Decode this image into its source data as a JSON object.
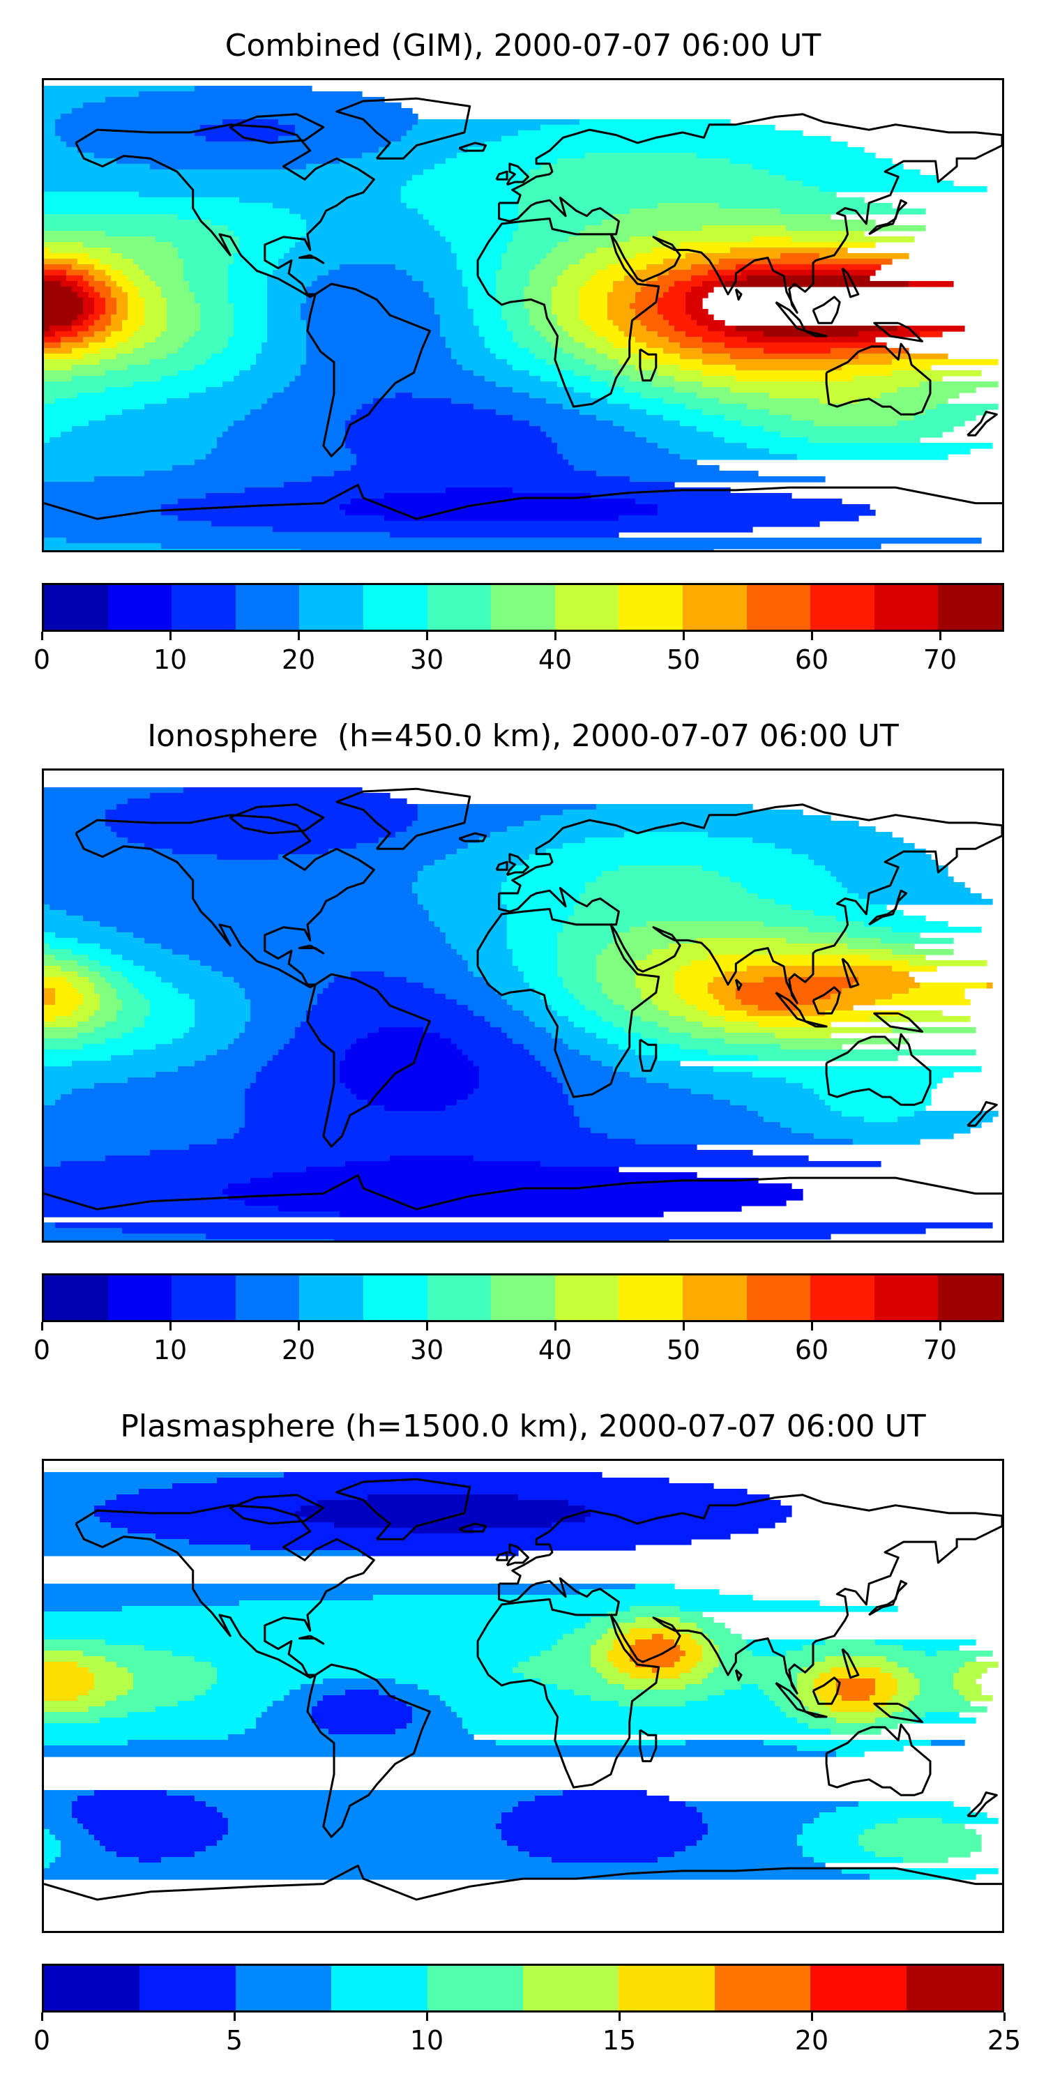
{
  "panels": [
    {
      "title": "Combined (GIM), 2000-07-07 06:00 UT",
      "colorbar": {
        "min": 0,
        "max": 75,
        "step": 5,
        "ticks": [
          "0",
          "10",
          "20",
          "30",
          "40",
          "50",
          "60",
          "70"
        ],
        "tick_values": [
          0,
          10,
          20,
          30,
          40,
          50,
          60,
          70
        ]
      },
      "field": {
        "background": 22,
        "features": [
          {
            "lon": 112,
            "lat": 3,
            "rlon": 80,
            "rlat": 28,
            "amp": 42
          },
          {
            "lon": 125,
            "lat": 5,
            "rlon": 40,
            "rlat": 14,
            "amp": 14
          },
          {
            "lon": 95,
            "lat": 6,
            "rlon": 25,
            "rlat": 9,
            "amp": 10
          },
          {
            "lon": 40,
            "lat": 5,
            "rlon": 70,
            "rlat": 35,
            "amp": 14
          },
          {
            "lon": -178,
            "lat": 5,
            "rlon": 25,
            "rlat": 16,
            "amp": 28
          },
          {
            "lon": -140,
            "lat": -3,
            "rlon": 70,
            "rlat": 25,
            "amp": 14
          },
          {
            "lon": -130,
            "lat": 30,
            "rlon": 50,
            "rlat": 15,
            "amp": 8
          },
          {
            "lon": -60,
            "lat": 0,
            "rlon": 55,
            "rlat": 25,
            "amp": -12
          },
          {
            "lon": -20,
            "lat": -45,
            "rlon": 80,
            "rlat": 25,
            "amp": -10
          },
          {
            "lon": 0,
            "lat": -75,
            "rlon": 180,
            "rlat": 12,
            "amp": -12
          },
          {
            "lon": -100,
            "lat": 70,
            "rlon": 70,
            "rlat": 15,
            "amp": -8
          },
          {
            "lon": 130,
            "lat": -40,
            "rlon": 45,
            "rlat": 15,
            "amp": 10
          },
          {
            "lon": 80,
            "lat": -25,
            "rlon": 40,
            "rlat": 20,
            "amp": 4
          },
          {
            "lon": 40,
            "lat": 55,
            "rlon": 90,
            "rlat": 20,
            "amp": 8
          }
        ]
      }
    },
    {
      "title": "Ionosphere  (h=450.0 km), 2000-07-07 06:00 UT",
      "colorbar": {
        "min": 0,
        "max": 75,
        "step": 5,
        "ticks": [
          "0",
          "10",
          "20",
          "30",
          "40",
          "50",
          "60",
          "70"
        ],
        "tick_values": [
          0,
          10,
          20,
          30,
          40,
          50,
          60,
          70
        ]
      },
      "field": {
        "background": 17,
        "features": [
          {
            "lon": 110,
            "lat": 5,
            "rlon": 70,
            "rlat": 25,
            "amp": 32
          },
          {
            "lon": 93,
            "lat": 3,
            "rlon": 18,
            "rlat": 7,
            "amp": 7
          },
          {
            "lon": 135,
            "lat": 12,
            "rlon": 25,
            "rlat": 8,
            "amp": 7
          },
          {
            "lon": 40,
            "lat": 20,
            "rlon": 65,
            "rlat": 35,
            "amp": 13
          },
          {
            "lon": -178,
            "lat": 5,
            "rlon": 25,
            "rlat": 16,
            "amp": 16
          },
          {
            "lon": -150,
            "lat": -5,
            "rlon": 60,
            "rlat": 20,
            "amp": 10
          },
          {
            "lon": -40,
            "lat": -20,
            "rlon": 60,
            "rlat": 35,
            "amp": -10
          },
          {
            "lon": 0,
            "lat": -72,
            "rlon": 180,
            "rlat": 15,
            "amp": -10
          },
          {
            "lon": -90,
            "lat": 70,
            "rlon": 70,
            "rlat": 14,
            "amp": -6
          },
          {
            "lon": 135,
            "lat": -40,
            "rlon": 40,
            "rlat": 15,
            "amp": 8
          },
          {
            "lon": 60,
            "lat": 55,
            "rlon": 90,
            "rlat": 20,
            "amp": 8
          }
        ]
      }
    },
    {
      "title": "Plasmasphere (h=1500.0 km), 2000-07-07 06:00 UT",
      "colorbar": {
        "min": 0,
        "max": 25,
        "step": 2.5,
        "ticks": [
          "0",
          "5",
          "10",
          "15",
          "20",
          "25"
        ],
        "tick_values": [
          0,
          5,
          10,
          15,
          20,
          25
        ]
      },
      "field": {
        "background": 6.5,
        "features": [
          {
            "lon": 0,
            "lat": 10,
            "rlon": 200,
            "rlat": 26,
            "amp": 3.5
          },
          {
            "lon": 50,
            "lat": 17,
            "rlon": 22,
            "rlat": 14,
            "amp": 10
          },
          {
            "lon": 125,
            "lat": 2,
            "rlon": 22,
            "rlat": 14,
            "amp": 10
          },
          {
            "lon": -178,
            "lat": 5,
            "rlon": 20,
            "rlat": 14,
            "amp": 6
          },
          {
            "lon": -160,
            "lat": 5,
            "rlon": 40,
            "rlat": 15,
            "amp": 4
          },
          {
            "lon": -60,
            "lat": -5,
            "rlon": 28,
            "rlat": 12,
            "amp": -6
          },
          {
            "lon": -30,
            "lat": 70,
            "rlon": 120,
            "rlat": 15,
            "amp": -5
          },
          {
            "lon": -150,
            "lat": -50,
            "rlon": 40,
            "rlat": 15,
            "amp": -4
          },
          {
            "lon": 30,
            "lat": -50,
            "rlon": 40,
            "rlat": 15,
            "amp": -4
          },
          {
            "lon": 155,
            "lat": -55,
            "rlon": 40,
            "rlat": 12,
            "amp": 6
          }
        ]
      }
    }
  ]
}
